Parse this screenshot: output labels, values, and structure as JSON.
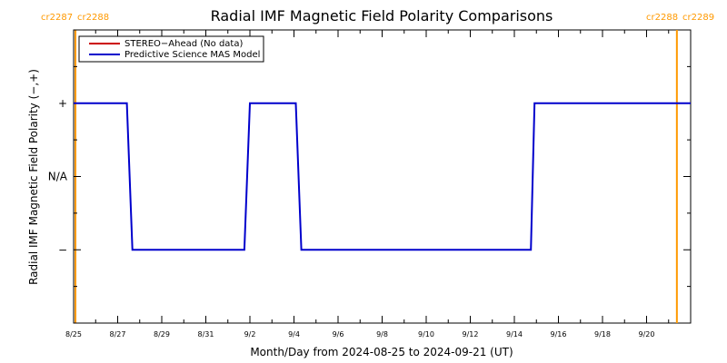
{
  "chart_data": {
    "type": "line",
    "title": "Radial IMF Magnetic Field Polarity Comparisons",
    "xlabel": "Month/Day from 2024-08-25 to 2024-09-21 (UT)",
    "ylabel": "Radial IMF Magnetic Field Polarity (−,+)",
    "y_tick_labels": [
      "+",
      "N/A",
      "−"
    ],
    "y_tick_values": [
      1,
      0,
      -1
    ],
    "ylim": [
      -2,
      2
    ],
    "x_start": "2024-08-25",
    "x_end": "2024-09-22",
    "x_tick_labels": [
      "8/25",
      "8/27",
      "8/29",
      "8/31",
      "9/2",
      "9/4",
      "9/6",
      "9/8",
      "9/10",
      "9/12",
      "9/14",
      "9/16",
      "9/18",
      "9/20"
    ],
    "x_tick_dates": [
      "2024-08-25",
      "2024-08-27",
      "2024-08-29",
      "2024-08-31",
      "2024-09-02",
      "2024-09-04",
      "2024-09-06",
      "2024-09-08",
      "2024-09-10",
      "2024-09-12",
      "2024-09-14",
      "2024-09-16",
      "2024-09-18",
      "2024-09-20"
    ],
    "carrington_left_labels": [
      "cr2287",
      "cr2288"
    ],
    "carrington_right_labels": [
      "cr2288",
      "cr2289"
    ],
    "carrington_boundaries": [
      "2024-08-25T02:00",
      "2024-09-21T09:00"
    ],
    "carrington_color": "#ff9900",
    "legend_position": "top-left",
    "series": [
      {
        "name": "STEREO−Ahead (No data)",
        "color": "#cc0000",
        "points": []
      },
      {
        "name": "Predictive Science MAS Model",
        "color": "#0000cc",
        "points": [
          [
            "2024-08-25T00:00",
            1
          ],
          [
            "2024-08-27T10:00",
            1
          ],
          [
            "2024-08-27T16:00",
            -1
          ],
          [
            "2024-09-01T18:00",
            -1
          ],
          [
            "2024-09-02T00:00",
            1
          ],
          [
            "2024-09-04T02:00",
            1
          ],
          [
            "2024-09-04T08:00",
            -1
          ],
          [
            "2024-09-14T18:00",
            -1
          ],
          [
            "2024-09-14T22:00",
            1
          ],
          [
            "2024-09-22T00:00",
            1
          ]
        ]
      }
    ]
  }
}
